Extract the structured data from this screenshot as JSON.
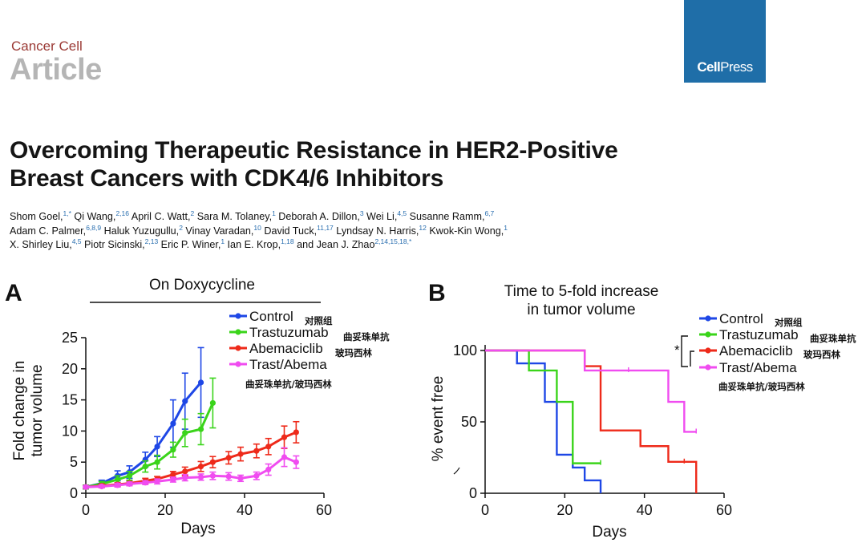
{
  "header": {
    "journal": "Cancer Cell",
    "section": "Article",
    "publisher_bold": "Cell",
    "publisher_light": "Press"
  },
  "paper": {
    "title_line1": "Overcoming Therapeutic Resistance in HER2-Positive",
    "title_line2": "Breast Cancers with CDK4/6 Inhibitors",
    "authors": [
      [
        [
          "Shom Goel,",
          "1,*"
        ],
        [
          " Qi Wang,",
          "2,16"
        ],
        [
          " April C. Watt,",
          "2"
        ],
        [
          " Sara M. Tolaney,",
          "1"
        ],
        [
          " Deborah A. Dillon,",
          "3"
        ],
        [
          " Wei Li,",
          "4,5"
        ],
        [
          " Susanne Ramm,",
          "6,7"
        ]
      ],
      [
        [
          "Adam C. Palmer,",
          "6,8,9"
        ],
        [
          " Haluk Yuzugullu,",
          "2"
        ],
        [
          " Vinay Varadan,",
          "10"
        ],
        [
          " David Tuck,",
          "11,17"
        ],
        [
          " Lyndsay N. Harris,",
          "12"
        ],
        [
          " Kwok-Kin Wong,",
          "1"
        ]
      ],
      [
        [
          "X. Shirley Liu,",
          "4,5"
        ],
        [
          " Piotr Sicinski,",
          "2,13"
        ],
        [
          " Eric P. Winer,",
          "1"
        ],
        [
          " Ian E. Krop,",
          "1,18"
        ],
        [
          " and Jean J. Zhao",
          "2,14,15,18,*"
        ]
      ]
    ]
  },
  "colors": {
    "control": "#1e47e6",
    "trastuzumab": "#3ad41a",
    "abemaciclib": "#ee2a1a",
    "trast_abema": "#f04cf0",
    "brand": "#1f6ea8",
    "journal": "#9b3a35"
  },
  "chart_data": [
    {
      "panel": "A",
      "type": "line",
      "title": "On Doxycycline",
      "xlabel": "Days",
      "ylabel_line1": "Fold change in",
      "ylabel_line2": "tumor volume",
      "xlim": [
        0,
        60
      ],
      "ylim": [
        0,
        25
      ],
      "xticks": [
        0,
        20,
        40,
        60
      ],
      "yticks": [
        0,
        5,
        10,
        15,
        20,
        25
      ],
      "series": [
        {
          "name": "Control",
          "name_zh": "对照组",
          "color_key": "control",
          "x": [
            0,
            4,
            8,
            11,
            15,
            18,
            22,
            25,
            29
          ],
          "y": [
            1,
            1.6,
            2.8,
            3.4,
            5.4,
            7.5,
            11.2,
            14.8,
            17.8
          ],
          "err": [
            0.3,
            0.5,
            0.8,
            1.0,
            1.2,
            1.6,
            3.8,
            4.5,
            5.6
          ]
        },
        {
          "name": "Trastuzumab",
          "name_zh": "曲妥珠单抗",
          "color_key": "trastuzumab",
          "x": [
            0,
            4,
            8,
            11,
            15,
            18,
            22,
            25,
            29,
            32
          ],
          "y": [
            1,
            1.5,
            2.2,
            2.8,
            4.3,
            5.0,
            7.0,
            9.7,
            10.3,
            14.5
          ],
          "err": [
            0.3,
            0.4,
            0.6,
            0.7,
            0.9,
            1.1,
            1.2,
            2.2,
            2.5,
            4.0
          ]
        },
        {
          "name": "Abemaciclib",
          "name_zh": "玻玛西林",
          "color_key": "abemaciclib",
          "x": [
            0,
            4,
            8,
            11,
            15,
            18,
            22,
            25,
            29,
            32,
            36,
            39,
            43,
            46,
            50,
            53
          ],
          "y": [
            1,
            1.2,
            1.4,
            1.6,
            2.0,
            2.3,
            3.0,
            3.5,
            4.3,
            5.0,
            5.7,
            6.3,
            6.8,
            7.5,
            9.0,
            9.8
          ],
          "err": [
            0.2,
            0.3,
            0.3,
            0.3,
            0.4,
            0.4,
            0.5,
            0.7,
            0.8,
            0.9,
            1.0,
            1.1,
            1.1,
            1.3,
            1.8,
            1.7
          ]
        },
        {
          "name": "Trast/Abema",
          "name_zh": "曲妥珠单抗/玻玛西林",
          "color_key": "trast_abema",
          "x": [
            0,
            4,
            8,
            11,
            15,
            18,
            22,
            25,
            29,
            32,
            36,
            39,
            43,
            46,
            50,
            53
          ],
          "y": [
            1,
            1.1,
            1.3,
            1.5,
            1.7,
            1.9,
            2.2,
            2.5,
            2.6,
            2.8,
            2.7,
            2.4,
            2.8,
            3.8,
            5.8,
            5.0
          ],
          "err": [
            0.2,
            0.2,
            0.3,
            0.3,
            0.3,
            0.4,
            0.4,
            0.5,
            0.5,
            0.6,
            0.6,
            0.5,
            0.6,
            0.9,
            1.5,
            1.0
          ]
        }
      ]
    },
    {
      "panel": "B",
      "type": "line",
      "step": true,
      "title_line1": "Time to 5-fold increase",
      "title_line2": "in tumor volume",
      "xlabel": "Days",
      "ylabel": "% event free",
      "xlim": [
        0,
        60
      ],
      "ylim": [
        0,
        100
      ],
      "xticks": [
        0,
        20,
        40,
        60
      ],
      "yticks": [
        0,
        50,
        100
      ],
      "significance_marker": "*",
      "series": [
        {
          "name": "Control",
          "name_zh": "对照组",
          "color_key": "control",
          "x": [
            0,
            8,
            15,
            18,
            22,
            25,
            29
          ],
          "y": [
            100,
            91,
            64,
            27,
            18,
            9,
            0
          ]
        },
        {
          "name": "Trastuzumab",
          "name_zh": "曲妥珠单抗",
          "color_key": "trastuzumab",
          "x": [
            0,
            11,
            18,
            22,
            29
          ],
          "y": [
            100,
            86,
            64,
            21,
            21
          ]
        },
        {
          "name": "Abemaciclib",
          "name_zh": "玻玛西林",
          "color_key": "abemaciclib",
          "x": [
            0,
            25,
            29,
            39,
            46,
            53
          ],
          "y": [
            100,
            89,
            44,
            33,
            22,
            0
          ]
        },
        {
          "name": "Trast/Abema",
          "name_zh": "曲妥珠单抗/玻玛西林",
          "color_key": "trast_abema",
          "x": [
            0,
            25,
            46,
            50,
            53
          ],
          "y": [
            100,
            86,
            64,
            43,
            43
          ]
        }
      ]
    }
  ]
}
